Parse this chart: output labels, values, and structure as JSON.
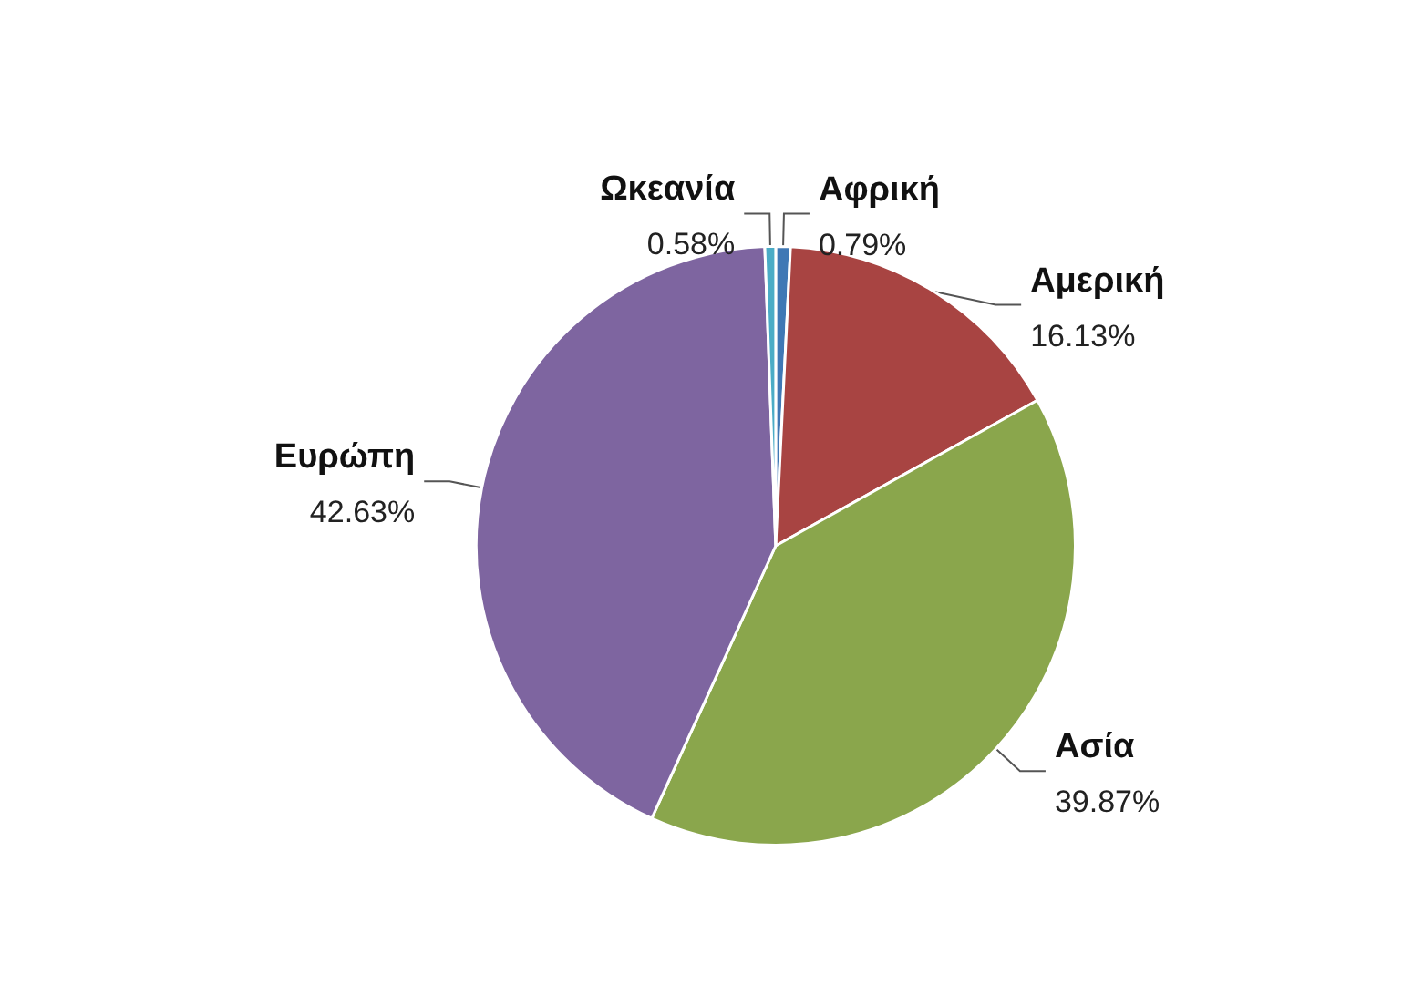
{
  "chart_data": {
    "type": "pie",
    "categories": [
      "Αφρική",
      "Αμερική",
      "Ασία",
      "Ευρώπη",
      "Ωκεανία"
    ],
    "values": [
      0.79,
      16.13,
      39.87,
      42.63,
      0.58
    ],
    "value_labels": [
      "0.79%",
      "16.13%",
      "39.87%",
      "42.63%",
      "0.58%"
    ],
    "colors": [
      "#3f78b5",
      "#a84442",
      "#8aa64c",
      "#7e65a0",
      "#4bacc6"
    ],
    "legend": false
  }
}
